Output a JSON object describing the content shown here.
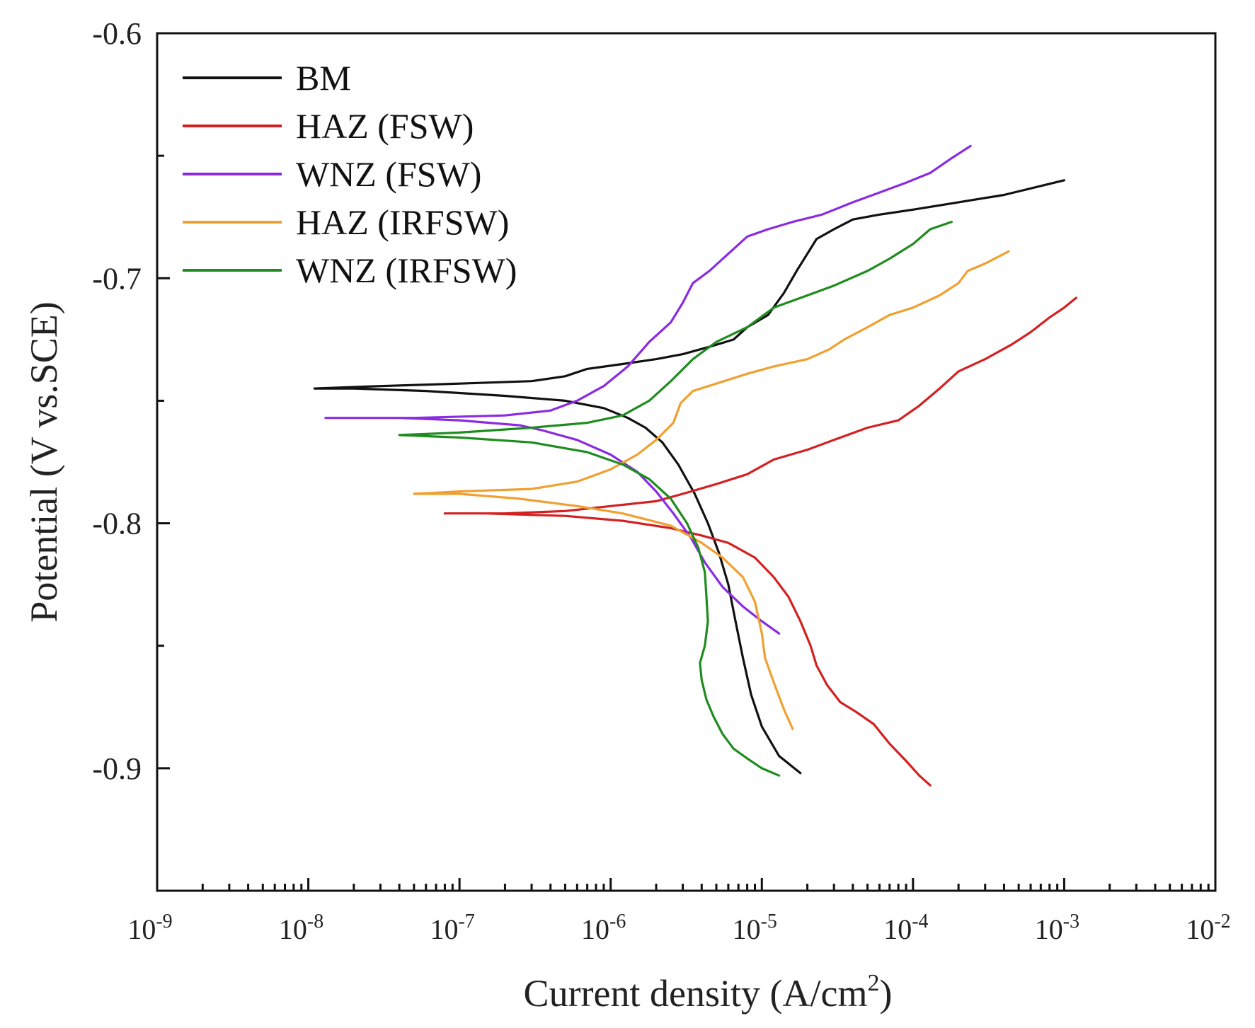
{
  "chart_data": {
    "type": "line",
    "title": "",
    "xlabel": "Current density (A/cm",
    "xlabel_sup": "2",
    "xlabel_end": ")",
    "ylabel": "Potential (V vs.SCE)",
    "xscale": "log",
    "xlim": [
      1e-09,
      0.01
    ],
    "ylim": [
      -0.95,
      -0.6
    ],
    "xticks": [
      {
        "value": 1e-09,
        "base": "10",
        "exp": "-9"
      },
      {
        "value": 1e-08,
        "base": "10",
        "exp": "-8"
      },
      {
        "value": 1e-07,
        "base": "10",
        "exp": "-7"
      },
      {
        "value": 1e-06,
        "base": "10",
        "exp": "-6"
      },
      {
        "value": 1e-05,
        "base": "10",
        "exp": "-5"
      },
      {
        "value": 0.0001,
        "base": "10",
        "exp": "-4"
      },
      {
        "value": 0.001,
        "base": "10",
        "exp": "-3"
      },
      {
        "value": 0.01,
        "base": "10",
        "exp": "-2"
      }
    ],
    "yticks": [
      {
        "value": -0.6,
        "label": "-0.6"
      },
      {
        "value": -0.7,
        "label": "-0.7"
      },
      {
        "value": -0.8,
        "label": "-0.8"
      },
      {
        "value": -0.9,
        "label": "-0.9"
      }
    ],
    "legend_position": "top-left",
    "series": [
      {
        "name": "BM",
        "color": "#111111",
        "points": [
          [
            1.8e-05,
            -0.902
          ],
          [
            1.3e-05,
            -0.895
          ],
          [
            1e-05,
            -0.883
          ],
          [
            8.5e-06,
            -0.87
          ],
          [
            7.5e-06,
            -0.855
          ],
          [
            6.7e-06,
            -0.84
          ],
          [
            6e-06,
            -0.825
          ],
          [
            5.2e-06,
            -0.812
          ],
          [
            4.4e-06,
            -0.8
          ],
          [
            3.6e-06,
            -0.788
          ],
          [
            2.8e-06,
            -0.776
          ],
          [
            2.2e-06,
            -0.767
          ],
          [
            1.7e-06,
            -0.761
          ],
          [
            1.3e-06,
            -0.757
          ],
          [
            9e-07,
            -0.753
          ],
          [
            5e-07,
            -0.75
          ],
          [
            2e-07,
            -0.748
          ],
          [
            6e-08,
            -0.746
          ],
          [
            2e-08,
            -0.745
          ],
          [
            1.1e-08,
            -0.745
          ],
          [
            3e-08,
            -0.744
          ],
          [
            1e-07,
            -0.743
          ],
          [
            3e-07,
            -0.742
          ],
          [
            5e-07,
            -0.74
          ],
          [
            7e-07,
            -0.737
          ],
          [
            1.2e-06,
            -0.735
          ],
          [
            2e-06,
            -0.733
          ],
          [
            3e-06,
            -0.731
          ],
          [
            4.5e-06,
            -0.728
          ],
          [
            6.5e-06,
            -0.725
          ],
          [
            8e-06,
            -0.72
          ],
          [
            1.1e-05,
            -0.715
          ],
          [
            1.4e-05,
            -0.706
          ],
          [
            1.7e-05,
            -0.697
          ],
          [
            2e-05,
            -0.69
          ],
          [
            2.3e-05,
            -0.684
          ],
          [
            3e-05,
            -0.68
          ],
          [
            4e-05,
            -0.676
          ],
          [
            6e-05,
            -0.674
          ],
          [
            0.0001,
            -0.672
          ],
          [
            0.0002,
            -0.669
          ],
          [
            0.0004,
            -0.666
          ],
          [
            0.001,
            -0.66
          ]
        ]
      },
      {
        "name": "HAZ (FSW)",
        "color": "#d42020",
        "points": [
          [
            0.00013,
            -0.907
          ],
          [
            0.00011,
            -0.903
          ],
          [
            9e-05,
            -0.897
          ],
          [
            7e-05,
            -0.89
          ],
          [
            5.5e-05,
            -0.882
          ],
          [
            4.2e-05,
            -0.877
          ],
          [
            3.3e-05,
            -0.873
          ],
          [
            2.7e-05,
            -0.866
          ],
          [
            2.3e-05,
            -0.858
          ],
          [
            2.1e-05,
            -0.85
          ],
          [
            1.8e-05,
            -0.84
          ],
          [
            1.5e-05,
            -0.83
          ],
          [
            1.2e-05,
            -0.822
          ],
          [
            9e-06,
            -0.814
          ],
          [
            6e-06,
            -0.808
          ],
          [
            4e-06,
            -0.805
          ],
          [
            2.5e-06,
            -0.802
          ],
          [
            1.2e-06,
            -0.799
          ],
          [
            5e-07,
            -0.797
          ],
          [
            1.5e-07,
            -0.796
          ],
          [
            8e-08,
            -0.796
          ],
          [
            2e-07,
            -0.796
          ],
          [
            5e-07,
            -0.795
          ],
          [
            1e-06,
            -0.793
          ],
          [
            2e-06,
            -0.791
          ],
          [
            3e-06,
            -0.788
          ],
          [
            5e-06,
            -0.784
          ],
          [
            8e-06,
            -0.78
          ],
          [
            1.2e-05,
            -0.774
          ],
          [
            2e-05,
            -0.77
          ],
          [
            3e-05,
            -0.766
          ],
          [
            5e-05,
            -0.761
          ],
          [
            8e-05,
            -0.758
          ],
          [
            0.00011,
            -0.752
          ],
          [
            0.00015,
            -0.745
          ],
          [
            0.0002,
            -0.738
          ],
          [
            0.0003,
            -0.733
          ],
          [
            0.00045,
            -0.727
          ],
          [
            0.0006,
            -0.722
          ],
          [
            0.0008,
            -0.716
          ],
          [
            0.001,
            -0.712
          ],
          [
            0.0012,
            -0.708
          ]
        ]
      },
      {
        "name": "WNZ (FSW)",
        "color": "#8a2be2",
        "points": [
          [
            1.3e-05,
            -0.845
          ],
          [
            1e-05,
            -0.84
          ],
          [
            7.5e-06,
            -0.834
          ],
          [
            5.5e-06,
            -0.826
          ],
          [
            4.2e-06,
            -0.816
          ],
          [
            3.4e-06,
            -0.806
          ],
          [
            2.6e-06,
            -0.796
          ],
          [
            2e-06,
            -0.787
          ],
          [
            1.5e-06,
            -0.779
          ],
          [
            1e-06,
            -0.772
          ],
          [
            6e-07,
            -0.766
          ],
          [
            3.5e-07,
            -0.762
          ],
          [
            2.5e-07,
            -0.76
          ],
          [
            1e-07,
            -0.758
          ],
          [
            4e-08,
            -0.757
          ],
          [
            1.3e-08,
            -0.757
          ],
          [
            5e-08,
            -0.757
          ],
          [
            2e-07,
            -0.756
          ],
          [
            4e-07,
            -0.754
          ],
          [
            6e-07,
            -0.75
          ],
          [
            9e-07,
            -0.744
          ],
          [
            1.3e-06,
            -0.736
          ],
          [
            1.8e-06,
            -0.726
          ],
          [
            2.5e-06,
            -0.718
          ],
          [
            3e-06,
            -0.71
          ],
          [
            3.5e-06,
            -0.702
          ],
          [
            4.5e-06,
            -0.697
          ],
          [
            6e-06,
            -0.69
          ],
          [
            8e-06,
            -0.683
          ],
          [
            1.1e-05,
            -0.68
          ],
          [
            1.6e-05,
            -0.677
          ],
          [
            2.5e-05,
            -0.674
          ],
          [
            4e-05,
            -0.669
          ],
          [
            6e-05,
            -0.665
          ],
          [
            9e-05,
            -0.661
          ],
          [
            0.00013,
            -0.657
          ],
          [
            0.00018,
            -0.651
          ],
          [
            0.00024,
            -0.646
          ]
        ]
      },
      {
        "name": "HAZ (IRFSW)",
        "color": "#f0a030",
        "points": [
          [
            1.6e-05,
            -0.884
          ],
          [
            1.4e-05,
            -0.876
          ],
          [
            1.2e-05,
            -0.865
          ],
          [
            1.05e-05,
            -0.855
          ],
          [
            1e-05,
            -0.845
          ],
          [
            9e-06,
            -0.832
          ],
          [
            7.5e-06,
            -0.822
          ],
          [
            5.5e-06,
            -0.814
          ],
          [
            4e-06,
            -0.808
          ],
          [
            2.5e-06,
            -0.801
          ],
          [
            1.2e-06,
            -0.796
          ],
          [
            6e-07,
            -0.793
          ],
          [
            2.5e-07,
            -0.79
          ],
          [
            1e-07,
            -0.788
          ],
          [
            5e-08,
            -0.788
          ],
          [
            1e-07,
            -0.787
          ],
          [
            3e-07,
            -0.786
          ],
          [
            6e-07,
            -0.783
          ],
          [
            1e-06,
            -0.778
          ],
          [
            1.5e-06,
            -0.772
          ],
          [
            2e-06,
            -0.766
          ],
          [
            2.6e-06,
            -0.759
          ],
          [
            2.9e-06,
            -0.751
          ],
          [
            3.5e-06,
            -0.746
          ],
          [
            5e-06,
            -0.743
          ],
          [
            8e-06,
            -0.739
          ],
          [
            1.2e-05,
            -0.736
          ],
          [
            2e-05,
            -0.733
          ],
          [
            2.8e-05,
            -0.729
          ],
          [
            3.5e-05,
            -0.725
          ],
          [
            5e-05,
            -0.72
          ],
          [
            7e-05,
            -0.715
          ],
          [
            0.0001,
            -0.712
          ],
          [
            0.00015,
            -0.707
          ],
          [
            0.0002,
            -0.702
          ],
          [
            0.00023,
            -0.697
          ],
          [
            0.0003,
            -0.694
          ],
          [
            0.00043,
            -0.689
          ]
        ]
      },
      {
        "name": "WNZ (IRFSW)",
        "color": "#1f8c1f",
        "points": [
          [
            1.3e-05,
            -0.903
          ],
          [
            1e-05,
            -0.9
          ],
          [
            8e-06,
            -0.896
          ],
          [
            6.5e-06,
            -0.892
          ],
          [
            5.5e-06,
            -0.886
          ],
          [
            4.8e-06,
            -0.879
          ],
          [
            4.3e-06,
            -0.872
          ],
          [
            4e-06,
            -0.864
          ],
          [
            3.9e-06,
            -0.857
          ],
          [
            4.2e-06,
            -0.85
          ],
          [
            4.4e-06,
            -0.84
          ],
          [
            4.3e-06,
            -0.83
          ],
          [
            4.2e-06,
            -0.82
          ],
          [
            3.8e-06,
            -0.81
          ],
          [
            3.2e-06,
            -0.8
          ],
          [
            2.5e-06,
            -0.79
          ],
          [
            1.8e-06,
            -0.782
          ],
          [
            1.2e-06,
            -0.776
          ],
          [
            7e-07,
            -0.771
          ],
          [
            3e-07,
            -0.767
          ],
          [
            1e-07,
            -0.765
          ],
          [
            4e-08,
            -0.764
          ],
          [
            1e-07,
            -0.763
          ],
          [
            3e-07,
            -0.761
          ],
          [
            7e-07,
            -0.759
          ],
          [
            1.2e-06,
            -0.756
          ],
          [
            1.8e-06,
            -0.75
          ],
          [
            2.5e-06,
            -0.742
          ],
          [
            3.5e-06,
            -0.733
          ],
          [
            5e-06,
            -0.726
          ],
          [
            8e-06,
            -0.72
          ],
          [
            1.2e-05,
            -0.712
          ],
          [
            2e-05,
            -0.707
          ],
          [
            3e-05,
            -0.703
          ],
          [
            5e-05,
            -0.697
          ],
          [
            7e-05,
            -0.692
          ],
          [
            0.0001,
            -0.686
          ],
          [
            0.00013,
            -0.68
          ],
          [
            0.00018,
            -0.677
          ]
        ]
      }
    ]
  }
}
